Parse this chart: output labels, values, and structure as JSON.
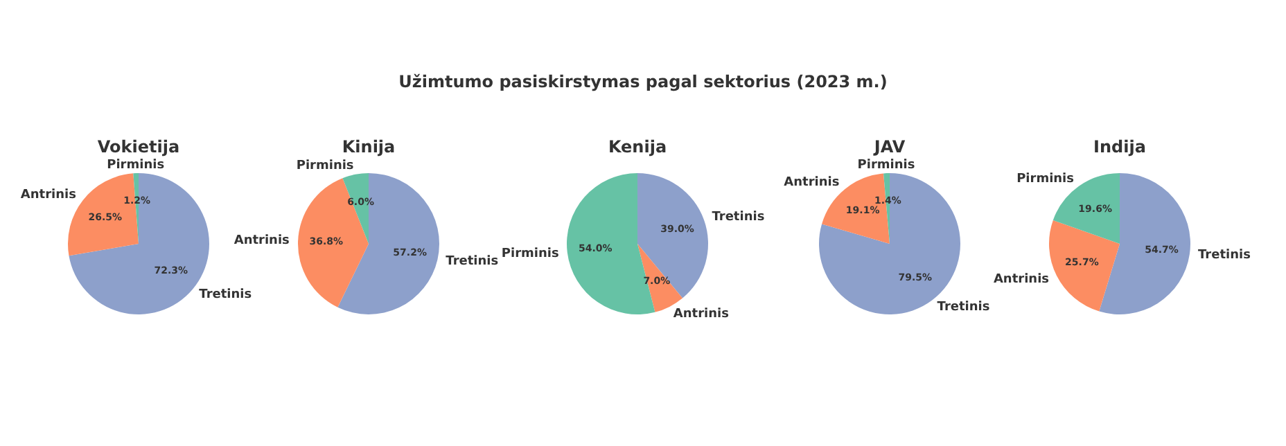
{
  "chart_data": [
    {
      "type": "other",
      "title": "Užimtumo pasiskirstymas pagal sektorius (2023 m.)"
    },
    {
      "type": "pie",
      "title": "Vokietija",
      "categories": [
        "Pirminis",
        "Antrinis",
        "Tretinis"
      ],
      "values": [
        1.2,
        26.5,
        72.3
      ],
      "colors": [
        "#66c2a5",
        "#fc8d62",
        "#8da0cb"
      ],
      "value_labels": [
        "1.2%",
        "26.5%",
        "72.3%"
      ]
    },
    {
      "type": "pie",
      "title": "Kinija",
      "categories": [
        "Pirminis",
        "Antrinis",
        "Tretinis"
      ],
      "values": [
        6.0,
        36.8,
        57.2
      ],
      "colors": [
        "#66c2a5",
        "#fc8d62",
        "#8da0cb"
      ],
      "value_labels": [
        "6.0%",
        "36.8%",
        "57.2%"
      ]
    },
    {
      "type": "pie",
      "title": "Kenija",
      "categories": [
        "Pirminis",
        "Antrinis",
        "Tretinis"
      ],
      "values": [
        54.0,
        7.0,
        39.0
      ],
      "colors": [
        "#66c2a5",
        "#fc8d62",
        "#8da0cb"
      ],
      "value_labels": [
        "54.0%",
        "7.0%",
        "39.0%"
      ]
    },
    {
      "type": "pie",
      "title": "JAV",
      "categories": [
        "Pirminis",
        "Antrinis",
        "Tretinis"
      ],
      "values": [
        1.4,
        19.1,
        79.5
      ],
      "colors": [
        "#66c2a5",
        "#fc8d62",
        "#8da0cb"
      ],
      "value_labels": [
        "1.4%",
        "19.1%",
        "79.5%"
      ]
    },
    {
      "type": "pie",
      "title": "Indija",
      "categories": [
        "Pirminis",
        "Antrinis",
        "Tretinis"
      ],
      "values": [
        19.6,
        25.7,
        54.7
      ],
      "colors": [
        "#66c2a5",
        "#fc8d62",
        "#8da0cb"
      ],
      "value_labels": [
        "19.6%",
        "25.7%",
        "54.7%"
      ]
    }
  ]
}
